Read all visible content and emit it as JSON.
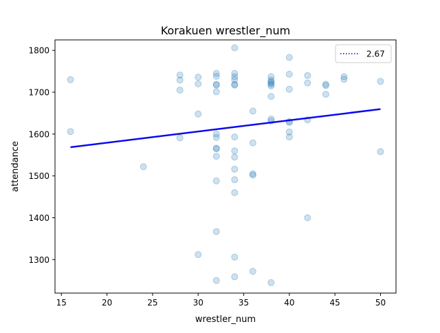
{
  "chart_data": {
    "type": "scatter",
    "title": "Korakuen wrestler_num",
    "xlabel": "wrestler_num",
    "ylabel": "attendance",
    "xlim": [
      14.3,
      51.7
    ],
    "ylim": [
      1220,
      1825
    ],
    "xticks": [
      15,
      20,
      25,
      30,
      35,
      40,
      45,
      50
    ],
    "yticks": [
      1300,
      1400,
      1500,
      1600,
      1700,
      1800
    ],
    "grid": false,
    "legend_position": "top-right",
    "series": [
      {
        "kind": "points",
        "color": "#1f77b4",
        "opacity": 0.22,
        "points": [
          [
            16,
            1730
          ],
          [
            16,
            1606
          ],
          [
            24,
            1522
          ],
          [
            28,
            1741
          ],
          [
            28,
            1729
          ],
          [
            28,
            1705
          ],
          [
            28,
            1591
          ],
          [
            30,
            1736
          ],
          [
            30,
            1720
          ],
          [
            30,
            1648
          ],
          [
            30,
            1312
          ],
          [
            32,
            1745
          ],
          [
            32,
            1738
          ],
          [
            32,
            1719
          ],
          [
            32,
            1717
          ],
          [
            32,
            1701
          ],
          [
            32,
            1600
          ],
          [
            32,
            1592
          ],
          [
            32,
            1566
          ],
          [
            32,
            1565
          ],
          [
            32,
            1547
          ],
          [
            32,
            1488
          ],
          [
            32,
            1367
          ],
          [
            32,
            1250
          ],
          [
            34,
            1806
          ],
          [
            34,
            1745
          ],
          [
            34,
            1737
          ],
          [
            34,
            1730
          ],
          [
            34,
            1719
          ],
          [
            34,
            1717
          ],
          [
            34,
            1593
          ],
          [
            34,
            1560
          ],
          [
            34,
            1545
          ],
          [
            34,
            1516
          ],
          [
            34,
            1491
          ],
          [
            34,
            1460
          ],
          [
            34,
            1306
          ],
          [
            34,
            1259
          ],
          [
            36,
            1655
          ],
          [
            36,
            1579
          ],
          [
            36,
            1505
          ],
          [
            36,
            1502
          ],
          [
            36,
            1272
          ],
          [
            38,
            1737
          ],
          [
            38,
            1729
          ],
          [
            38,
            1725
          ],
          [
            38,
            1722
          ],
          [
            38,
            1719
          ],
          [
            38,
            1715
          ],
          [
            38,
            1690
          ],
          [
            38,
            1636
          ],
          [
            38,
            1631
          ],
          [
            38,
            1245
          ],
          [
            40,
            1783
          ],
          [
            40,
            1743
          ],
          [
            40,
            1707
          ],
          [
            40,
            1630
          ],
          [
            40,
            1628
          ],
          [
            40,
            1605
          ],
          [
            40,
            1593
          ],
          [
            42,
            1740
          ],
          [
            42,
            1722
          ],
          [
            42,
            1634
          ],
          [
            42,
            1400
          ],
          [
            44,
            1719
          ],
          [
            44,
            1716
          ],
          [
            44,
            1695
          ],
          [
            46,
            1737
          ],
          [
            46,
            1731
          ],
          [
            50,
            1726
          ],
          [
            50,
            1558
          ]
        ]
      },
      {
        "kind": "line",
        "name": "2.67",
        "color": "#0000ff",
        "dash": "dotted",
        "x": [
          16,
          50
        ],
        "y": [
          1569,
          1660
        ]
      }
    ]
  }
}
